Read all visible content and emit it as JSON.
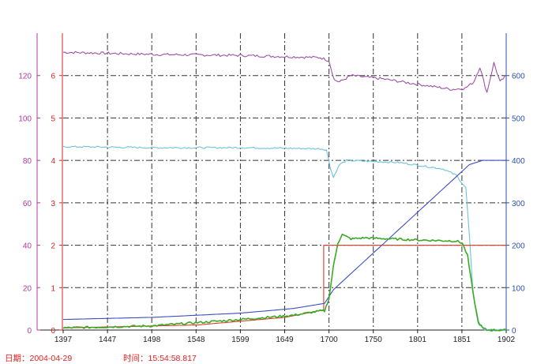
{
  "footer": {
    "date_label": "日期：2004-04-29",
    "time_label": "时间：15:54:58.817"
  },
  "colors": {
    "axis_outer_left": "#b03a9e",
    "axis_inner_left": "#e02020",
    "axis_right": "#2c4fb0",
    "x_axis": "#222222",
    "grid": "#333333",
    "footer_text": "#e02020"
  },
  "chart_data": {
    "type": "line",
    "title": "",
    "xlabel": "",
    "ylabel": "",
    "x_ticks": [
      "1397",
      "1447",
      "1498",
      "1548",
      "1599",
      "1649",
      "1700",
      "1750",
      "1801",
      "1851",
      "1902"
    ],
    "xlim": [
      1397,
      1902
    ],
    "grid": true,
    "legend": "none",
    "y_axis_outer_left": {
      "ticks": [
        "0",
        "20",
        "40",
        "60",
        "80",
        "100",
        "120"
      ],
      "ylim": [
        0,
        140
      ],
      "color": "#b03a9e"
    },
    "y_axis_inner_left": {
      "ticks": [
        "0",
        "1",
        "2",
        "3",
        "4",
        "5",
        "6"
      ],
      "ylim": [
        0,
        7
      ],
      "color": "#e02020"
    },
    "y_axis_right": {
      "ticks": [
        "0",
        "100",
        "200",
        "300",
        "400",
        "500",
        "600"
      ],
      "ylim": [
        0,
        700
      ],
      "color": "#2c4fb0"
    },
    "series": [
      {
        "color": "#a050a8",
        "axis": "outer_left",
        "noise": 0.6,
        "x": [
          1397,
          1500,
          1600,
          1690,
          1700,
          1706,
          1712,
          1725,
          1760,
          1800,
          1840,
          1855,
          1865,
          1872,
          1880,
          1888,
          1895,
          1902
        ],
        "y": [
          131,
          130,
          129.5,
          128.5,
          127,
          118,
          117,
          120,
          118.5,
          116,
          113.5,
          114,
          117,
          124,
          112,
          126,
          117,
          120
        ]
      },
      {
        "color": "#6cc4d8",
        "axis": "outer_left",
        "noise": 0.4,
        "x": [
          1397,
          1500,
          1600,
          1690,
          1697,
          1702,
          1705,
          1712,
          1720,
          1780,
          1830,
          1845,
          1856,
          1860,
          1864,
          1870,
          1878,
          1902
        ],
        "y": [
          86.5,
          86,
          86,
          85.5,
          85,
          76,
          72,
          78,
          80,
          79,
          76,
          73,
          67,
          45,
          18,
          3,
          0,
          0
        ]
      },
      {
        "color": "#e03a28",
        "axis": "inner_left",
        "noise": 0,
        "x": [
          1397,
          1550,
          1650,
          1690,
          1694,
          1694,
          1902
        ],
        "y": [
          0.05,
          0.12,
          0.3,
          0.46,
          0.48,
          2.0,
          2.0
        ]
      },
      {
        "color": "#3b4fbf",
        "axis": "right",
        "noise": 0,
        "x": [
          1397,
          1500,
          1600,
          1660,
          1695,
          1705,
          1860,
          1875,
          1902
        ],
        "y": [
          25,
          30,
          40,
          51,
          63,
          95,
          390,
          400,
          400
        ]
      },
      {
        "color": "#3aaa24",
        "axis": "outer_left",
        "noise": 0.5,
        "x": [
          1397,
          1500,
          1600,
          1660,
          1690,
          1695,
          1700,
          1705,
          1710,
          1715,
          1725,
          1740,
          1800,
          1845,
          1852,
          1858,
          1864,
          1870,
          1875,
          1880,
          1902
        ],
        "y": [
          1,
          2,
          5,
          7,
          9,
          9,
          15,
          30,
          41,
          45,
          43,
          43.5,
          42.5,
          42,
          41,
          35,
          18,
          4,
          1,
          0,
          0
        ]
      }
    ]
  }
}
